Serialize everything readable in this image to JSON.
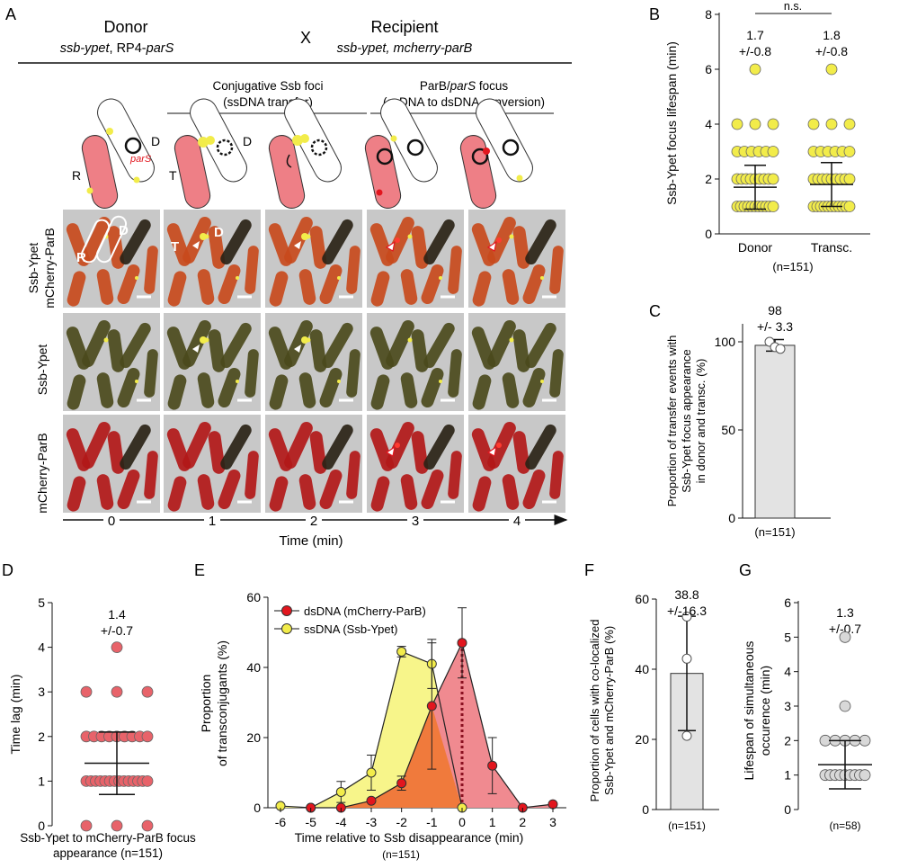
{
  "panelA": {
    "letter": "A",
    "donor_title": "Donor",
    "donor_genotype_a": "ssb-ypet",
    "donor_genotype_b": ", RP4-",
    "donor_genotype_c": "parS",
    "cross": "X",
    "recipient_title": "Recipient",
    "recipient_genotype": "ssb-ypet, mcherry-parB",
    "stage1_line1": "Conjugative Ssb foci",
    "stage1_line2": "(ssDNA transfer)",
    "stage2_line1a": "ParB/",
    "stage2_line1b": "parS",
    "stage2_line1c": " focus",
    "stage2_line2": "(ssDNA to dsDNA conversion)",
    "label_R": "R",
    "label_D": "D",
    "label_T": "T",
    "label_parS": "parS",
    "row_label_merge_1": "Ssb-Ypet",
    "row_label_merge_2": "mCherry-ParB",
    "row_label_ssb": "Ssb-Ypet",
    "row_label_parb": "mCherry-ParB",
    "time_ticks": [
      "0",
      "1",
      "2",
      "3",
      "4"
    ],
    "time_label": "Time (min)"
  },
  "colors": {
    "recipient": "#ee7f86",
    "ypet": "#f2ec4a",
    "mcherry": "#e2161e",
    "bar_fill": "#e3e3e3",
    "ssdna_fill": "#f7f58a",
    "dsdna_fill": "#f08a90",
    "overlap_fill": "#f07a3c"
  },
  "chart_data": [
    {
      "panel": "B",
      "type": "scatter",
      "categories": [
        "Donor",
        "Transc."
      ],
      "ylabel": "Ssb-Ypet focus lifespan (min)",
      "ylim": [
        0,
        8
      ],
      "yticks": [
        "0",
        "2",
        "4",
        "6",
        "8"
      ],
      "mean": [
        1.7,
        1.8
      ],
      "sd": [
        0.8,
        0.8
      ],
      "annotations": [
        [
          "1.7",
          "+/-0.8"
        ],
        [
          "1.8",
          "+/-0.8"
        ]
      ],
      "significance": "n.s.",
      "n": "(n=151)",
      "points": [
        [
          1,
          2,
          3,
          4,
          6
        ],
        [
          1,
          2,
          3,
          4,
          6
        ]
      ]
    },
    {
      "panel": "C",
      "type": "bar",
      "ylabel_lines": [
        "Proportion of transfer events with",
        "Ssb-Ypet focus appearance",
        "in donor and transc. (%)"
      ],
      "ylim": [
        0,
        100
      ],
      "yticks": [
        "0",
        "50",
        "100"
      ],
      "values": [
        98
      ],
      "sd": [
        3.3
      ],
      "replicates": [
        100,
        97,
        96
      ],
      "annotation": [
        "98",
        "+/- 3.3"
      ],
      "n": "(n=151)"
    },
    {
      "panel": "D",
      "type": "scatter",
      "ylabel": "Time lag (min)",
      "ylim": [
        0,
        5
      ],
      "yticks": [
        "0",
        "1",
        "2",
        "3",
        "4",
        "5"
      ],
      "mean": [
        1.4
      ],
      "sd": [
        0.7
      ],
      "annotation": [
        "1.4",
        "+/-0.7"
      ],
      "points": [
        0,
        1,
        2,
        3,
        4
      ],
      "xlabel_lines": [
        "Ssb-Ypet to mCherry-ParB focus",
        "appearance (n=151)"
      ]
    },
    {
      "panel": "E",
      "type": "area",
      "x": [
        -6,
        -5,
        -4,
        -3,
        -2,
        -1,
        0,
        1,
        2,
        3
      ],
      "xticks": [
        "-6",
        "-5",
        "-4",
        "-3",
        "-2",
        "-1",
        "0",
        "1",
        "2",
        "3"
      ],
      "ylim": [
        0,
        60
      ],
      "yticks": [
        "0",
        "20",
        "40",
        "60"
      ],
      "ylabel_lines": [
        "Proportion",
        "of transconjugants (%)"
      ],
      "xlabel": "Time relative to Ssb disappearance (min)",
      "n": "(n=151)",
      "series": [
        {
          "name": "dsDNA (mCherry-ParB)",
          "values": [
            null,
            0,
            0,
            2,
            7,
            29,
            47,
            12,
            0,
            1
          ],
          "err": [
            null,
            0,
            0,
            0,
            2,
            18,
            10,
            8,
            0,
            0
          ]
        },
        {
          "name": "ssDNA (Ssb-Ypet)",
          "values": [
            0.5,
            0,
            4.5,
            10,
            44.5,
            41,
            0,
            null,
            null,
            null
          ],
          "err": [
            0,
            0,
            3,
            5,
            1.5,
            7,
            0,
            null,
            null,
            null
          ]
        }
      ]
    },
    {
      "panel": "F",
      "type": "bar",
      "ylabel_lines": [
        "Proportion of cells with co-localized",
        "Ssb-Ypet and mCherry-ParB (%)"
      ],
      "ylim": [
        0,
        60
      ],
      "yticks": [
        "0",
        "20",
        "40",
        "60"
      ],
      "values": [
        38.8
      ],
      "sd": [
        16.3
      ],
      "replicates": [
        55,
        43,
        21
      ],
      "annotation": [
        "38.8",
        "+/-16.3"
      ],
      "n": "(n=151)"
    },
    {
      "panel": "G",
      "type": "scatter",
      "ylabel_lines": [
        "Lifespan of simultaneous",
        "occurence (min)"
      ],
      "ylim": [
        0,
        6
      ],
      "yticks": [
        "0",
        "1",
        "2",
        "3",
        "4",
        "5",
        "6"
      ],
      "mean": [
        1.3
      ],
      "sd": [
        0.7
      ],
      "annotation": [
        "1.3",
        "+/-0.7"
      ],
      "points": [
        1,
        2,
        3,
        5
      ],
      "n": "(n=58)"
    }
  ],
  "letters": {
    "B": "B",
    "C": "C",
    "D": "D",
    "E": "E",
    "F": "F",
    "G": "G"
  }
}
